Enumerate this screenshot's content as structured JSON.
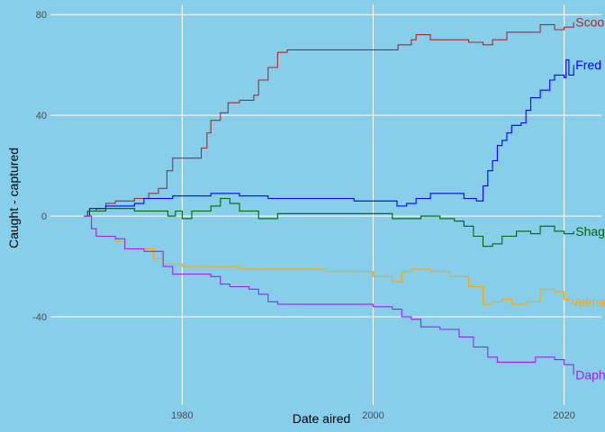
{
  "chart_data": {
    "type": "line",
    "title": "",
    "xlabel": "Date aired",
    "ylabel": "Caught - captured",
    "xlim": [
      1966.2,
      2023.9
    ],
    "ylim": [
      -75,
      84
    ],
    "xticks": [
      1980,
      2000,
      2020
    ],
    "yticks": [
      80,
      40,
      0,
      -40
    ],
    "grid": true,
    "legend": "direct labels at line ends",
    "background": "#87CEEB",
    "series": [
      {
        "name": "Scooby",
        "color": "#A52A2A",
        "points": [
          [
            1969.7,
            0
          ],
          [
            1970.1,
            2
          ],
          [
            1971,
            3
          ],
          [
            1972,
            5
          ],
          [
            1973,
            6
          ],
          [
            1975,
            7
          ],
          [
            1976.5,
            9
          ],
          [
            1977.5,
            11
          ],
          [
            1978.4,
            18
          ],
          [
            1979,
            23
          ],
          [
            1982,
            27
          ],
          [
            1982.6,
            33
          ],
          [
            1983,
            38
          ],
          [
            1984,
            41
          ],
          [
            1984.8,
            45
          ],
          [
            1986,
            46
          ],
          [
            1987.5,
            48
          ],
          [
            1988,
            54
          ],
          [
            1989,
            59
          ],
          [
            1990,
            65
          ],
          [
            1991,
            66
          ],
          [
            1998,
            66
          ],
          [
            2002.4,
            66
          ],
          [
            2002.6,
            68
          ],
          [
            2004,
            70
          ],
          [
            2004.5,
            72
          ],
          [
            2005.5,
            72
          ],
          [
            2006,
            70
          ],
          [
            2010,
            69
          ],
          [
            2011.5,
            68
          ],
          [
            2012.5,
            70
          ],
          [
            2014,
            73
          ],
          [
            2016,
            73
          ],
          [
            2017.5,
            76
          ],
          [
            2019,
            74
          ],
          [
            2020,
            75
          ],
          [
            2021,
            77
          ]
        ]
      },
      {
        "name": "Fred",
        "color": "#0000FF",
        "points": [
          [
            1969.7,
            0
          ],
          [
            1970.3,
            3
          ],
          [
            1972,
            4
          ],
          [
            1975,
            5
          ],
          [
            1976,
            7
          ],
          [
            1979,
            8
          ],
          [
            1983,
            9
          ],
          [
            1986,
            8
          ],
          [
            1989,
            7
          ],
          [
            1998,
            6
          ],
          [
            2002.5,
            4
          ],
          [
            2003.5,
            5
          ],
          [
            2004.5,
            7
          ],
          [
            2006,
            9
          ],
          [
            2008,
            9
          ],
          [
            2009.5,
            7
          ],
          [
            2010.8,
            6
          ],
          [
            2011.5,
            12
          ],
          [
            2012,
            18
          ],
          [
            2012.5,
            22
          ],
          [
            2013,
            28
          ],
          [
            2013.5,
            30
          ],
          [
            2014,
            33
          ],
          [
            2014.5,
            36
          ],
          [
            2015.5,
            37
          ],
          [
            2016,
            42
          ],
          [
            2016.5,
            47
          ],
          [
            2017.5,
            50
          ],
          [
            2018.5,
            54
          ],
          [
            2019,
            56
          ],
          [
            2020,
            55
          ],
          [
            2020.2,
            62
          ],
          [
            2020.5,
            56
          ],
          [
            2021,
            60
          ]
        ]
      },
      {
        "name": "Shaggy",
        "color": "#006400",
        "points": [
          [
            1969.7,
            0
          ],
          [
            1970.1,
            2
          ],
          [
            1972,
            3
          ],
          [
            1975,
            2
          ],
          [
            1977,
            2
          ],
          [
            1978.5,
            0
          ],
          [
            1979.3,
            2
          ],
          [
            1980,
            -1
          ],
          [
            1981,
            2
          ],
          [
            1983,
            4
          ],
          [
            1984,
            7
          ],
          [
            1985,
            5
          ],
          [
            1986,
            2
          ],
          [
            1987,
            2
          ],
          [
            1988,
            -1
          ],
          [
            1990,
            1
          ],
          [
            1995,
            1
          ],
          [
            2000,
            1
          ],
          [
            2002,
            -1
          ],
          [
            2005,
            0
          ],
          [
            2007,
            -1
          ],
          [
            2008.5,
            -2
          ],
          [
            2009.5,
            -4
          ],
          [
            2010.5,
            -8
          ],
          [
            2011.5,
            -12
          ],
          [
            2012.5,
            -11
          ],
          [
            2013.5,
            -8
          ],
          [
            2015,
            -6
          ],
          [
            2016.5,
            -7
          ],
          [
            2017.5,
            -4
          ],
          [
            2019,
            -6
          ],
          [
            2020,
            -7
          ],
          [
            2021,
            -6
          ]
        ]
      },
      {
        "name": "Velma",
        "color": "#FFA500",
        "points": [
          [
            1969.7,
            0
          ],
          [
            1970.5,
            -5
          ],
          [
            1971,
            -8
          ],
          [
            1973,
            -10
          ],
          [
            1974,
            -13
          ],
          [
            1976,
            -13
          ],
          [
            1977,
            -17
          ],
          [
            1978,
            -19
          ],
          [
            1980,
            -20
          ],
          [
            1982,
            -20
          ],
          [
            1985,
            -20
          ],
          [
            1986,
            -21
          ],
          [
            1990,
            -21
          ],
          [
            1995,
            -22
          ],
          [
            2000,
            -24
          ],
          [
            2002,
            -26
          ],
          [
            2003,
            -22
          ],
          [
            2004,
            -21
          ],
          [
            2006,
            -22
          ],
          [
            2008,
            -24
          ],
          [
            2010,
            -28
          ],
          [
            2011.5,
            -35
          ],
          [
            2012.5,
            -34
          ],
          [
            2013.5,
            -33
          ],
          [
            2014.5,
            -35
          ],
          [
            2016,
            -34
          ],
          [
            2017.5,
            -29
          ],
          [
            2019,
            -30
          ],
          [
            2020,
            -33
          ],
          [
            2020.5,
            -34
          ]
        ]
      },
      {
        "name": "Daphnie",
        "color": "#A020F0",
        "points": [
          [
            1969.7,
            0
          ],
          [
            1970.5,
            -5
          ],
          [
            1971,
            -8
          ],
          [
            1973,
            -9
          ],
          [
            1974,
            -13
          ],
          [
            1976,
            -14
          ],
          [
            1978,
            -20
          ],
          [
            1979,
            -23
          ],
          [
            1981,
            -23
          ],
          [
            1982,
            -23
          ],
          [
            1983,
            -24
          ],
          [
            1984,
            -27
          ],
          [
            1985,
            -28
          ],
          [
            1987,
            -29
          ],
          [
            1988,
            -31
          ],
          [
            1989,
            -34
          ],
          [
            1990,
            -35
          ],
          [
            1995,
            -35
          ],
          [
            2000,
            -36
          ],
          [
            2002,
            -37
          ],
          [
            2003,
            -40
          ],
          [
            2004,
            -41
          ],
          [
            2005,
            -44
          ],
          [
            2007,
            -45
          ],
          [
            2009,
            -48
          ],
          [
            2010.5,
            -52
          ],
          [
            2012,
            -56
          ],
          [
            2013,
            -58
          ],
          [
            2015,
            -58
          ],
          [
            2016,
            -58
          ],
          [
            2017,
            -56
          ],
          [
            2018,
            -56
          ],
          [
            2019,
            -57
          ],
          [
            2020,
            -59
          ],
          [
            2021,
            -63
          ]
        ]
      }
    ]
  }
}
